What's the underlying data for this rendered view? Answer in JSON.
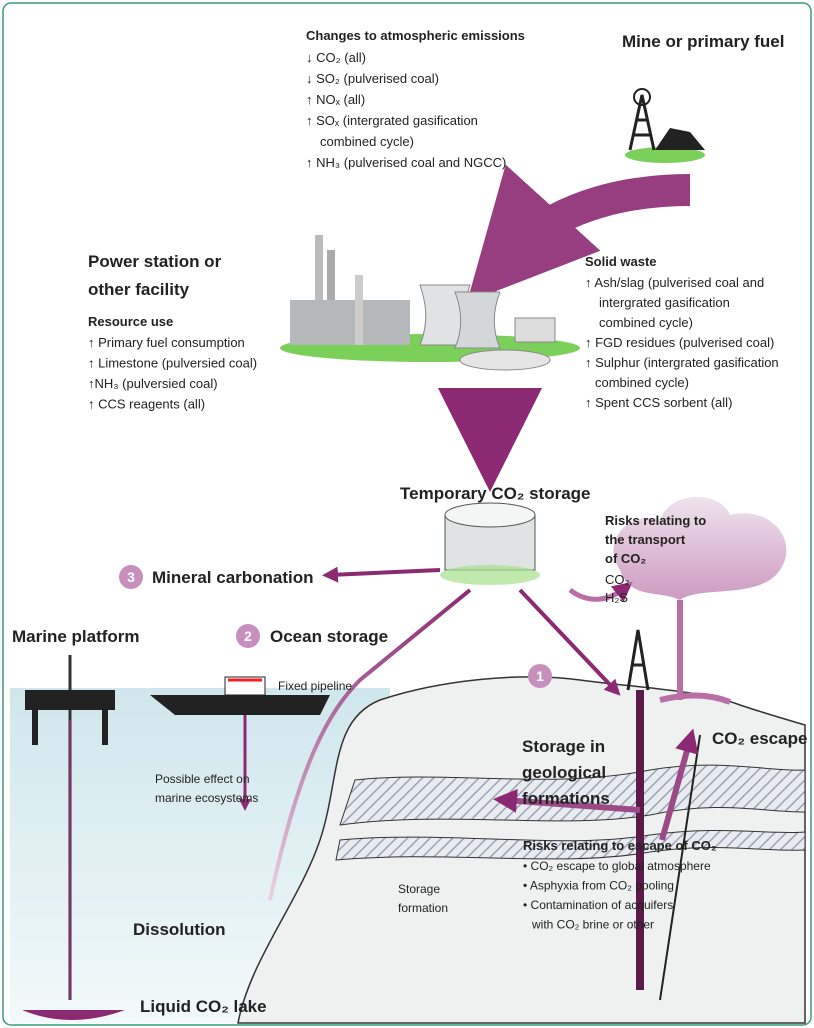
{
  "emissions": {
    "title": "Changes to atmospheric emissions",
    "lines": [
      "↓ CO₂ (all)",
      "↓ SO₂ (pulverised coal)",
      "↑ NOₓ (all)",
      "↑ SOₓ (intergrated gasification",
      "combined cycle)",
      "↑ NH₃ (pulverised coal and NGCC)"
    ]
  },
  "mine": {
    "title": "Mine or primary fuel"
  },
  "power_station": {
    "title_lines": [
      "Power station or",
      "other facility"
    ]
  },
  "resource_use": {
    "title": "Resource use",
    "lines": [
      "↑ Primary fuel consumption",
      "↑ Limestone (pulversied coal)",
      "↑NH₃ (pulversied coal)",
      "↑ CCS reagents (all)"
    ]
  },
  "solid_waste": {
    "title": "Solid waste",
    "lines": [
      "↑ Ash/slag (pulverised coal and",
      "intergrated gasification",
      "combined cycle)",
      "↑ FGD residues (pulverised coal)",
      "↑ Sulphur (intergrated gasification",
      "combined cycle)",
      "↑ Spent CCS sorbent (all)"
    ]
  },
  "temporary_storage": {
    "title": "Temporary CO₂ storage"
  },
  "transport_risks": {
    "title_lines": [
      "Risks relating to",
      "the transport",
      "of CO₂"
    ],
    "lines": [
      "CO₂",
      "H₂S"
    ]
  },
  "options": [
    {
      "number": "1",
      "label_lines": [
        "Storage in",
        "geological",
        "formations"
      ]
    },
    {
      "number": "2",
      "label_lines": [
        "Ocean storage"
      ]
    },
    {
      "number": "3",
      "label_lines": [
        "Mineral carbonation"
      ]
    }
  ],
  "marine_platform": "Marine platform",
  "fixed_pipeline": "Fixed pipeline",
  "co2_escape": "CO₂ escape",
  "marine_effect": [
    "Possible effect on",
    "marine ecosystems"
  ],
  "storage_formation": [
    "Storage",
    "formation"
  ],
  "dissolution": "Dissolution",
  "liquid_lake": "Liquid CO₂ lake",
  "escape_risks": {
    "title": "Risks relating to escape of CO₂",
    "lines": [
      "• CO₂ escape to global atmosphere",
      "• Asphyxia from CO₂ pooling",
      "• Contamination of acquifers",
      "with CO₂ brine or other"
    ]
  }
}
